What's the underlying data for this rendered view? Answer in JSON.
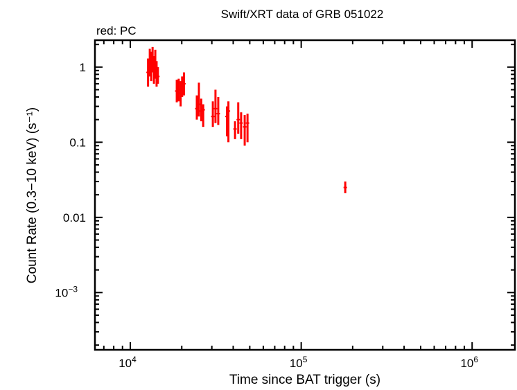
{
  "chart_data": {
    "type": "scatter",
    "title": "Swift/XRT data of GRB 051022",
    "legend_note": "red: PC",
    "xlabel": "Time since BAT trigger (s)",
    "ylabel": "Count Rate (0.3−10 keV) (s⁻¹)",
    "xscale": "log",
    "yscale": "log",
    "xlim": [
      6210,
      1780000
    ],
    "ylim": [
      0.000173,
      2.28
    ],
    "xticks": [
      {
        "value": 10000,
        "base": "10",
        "exp": "4"
      },
      {
        "value": 100000,
        "base": "10",
        "exp": "5"
      },
      {
        "value": 1000000,
        "base": "10",
        "exp": "6"
      }
    ],
    "yticks": [
      {
        "value": 1,
        "label": "1",
        "exp": ""
      },
      {
        "value": 0.1,
        "label": "0.1",
        "exp": ""
      },
      {
        "value": 0.01,
        "label": "0.01",
        "exp": ""
      },
      {
        "value": 0.001,
        "label": "10",
        "exp": "−3"
      }
    ],
    "series_color": "#ff0000",
    "series": [
      {
        "name": "PC",
        "points": [
          {
            "x": 12700,
            "y": 0.85,
            "ylo": 0.55,
            "yhi": 1.3
          },
          {
            "x": 13000,
            "y": 1.2,
            "ylo": 0.75,
            "yhi": 1.75
          },
          {
            "x": 13250,
            "y": 1.0,
            "ylo": 0.65,
            "yhi": 1.6
          },
          {
            "x": 13500,
            "y": 1.3,
            "ylo": 0.85,
            "yhi": 1.85
          },
          {
            "x": 13750,
            "y": 0.9,
            "ylo": 0.6,
            "yhi": 1.4
          },
          {
            "x": 14000,
            "y": 1.1,
            "ylo": 0.7,
            "yhi": 1.7
          },
          {
            "x": 14250,
            "y": 0.8,
            "ylo": 0.55,
            "yhi": 1.2
          },
          {
            "x": 14500,
            "y": 0.75,
            "ylo": 0.6,
            "yhi": 1.0
          },
          {
            "x": 18700,
            "y": 0.48,
            "ylo": 0.34,
            "yhi": 0.68
          },
          {
            "x": 19200,
            "y": 0.5,
            "ylo": 0.35,
            "yhi": 0.7
          },
          {
            "x": 19700,
            "y": 0.45,
            "ylo": 0.3,
            "yhi": 0.65
          },
          {
            "x": 20100,
            "y": 0.55,
            "ylo": 0.4,
            "yhi": 0.75
          },
          {
            "x": 20600,
            "y": 0.6,
            "ylo": 0.42,
            "yhi": 0.85
          },
          {
            "x": 24500,
            "y": 0.28,
            "ylo": 0.2,
            "yhi": 0.42
          },
          {
            "x": 25200,
            "y": 0.32,
            "ylo": 0.22,
            "yhi": 0.62
          },
          {
            "x": 26000,
            "y": 0.26,
            "ylo": 0.19,
            "yhi": 0.38
          },
          {
            "x": 26700,
            "y": 0.27,
            "ylo": 0.16,
            "yhi": 0.32
          },
          {
            "x": 30400,
            "y": 0.22,
            "ylo": 0.16,
            "yhi": 0.35
          },
          {
            "x": 31500,
            "y": 0.28,
            "ylo": 0.18,
            "yhi": 0.5
          },
          {
            "x": 32700,
            "y": 0.24,
            "ylo": 0.17,
            "yhi": 0.4
          },
          {
            "x": 36800,
            "y": 0.22,
            "ylo": 0.12,
            "yhi": 0.3
          },
          {
            "x": 37500,
            "y": 0.26,
            "ylo": 0.1,
            "yhi": 0.35
          },
          {
            "x": 41000,
            "y": 0.15,
            "ylo": 0.11,
            "yhi": 0.19
          },
          {
            "x": 42800,
            "y": 0.2,
            "ylo": 0.13,
            "yhi": 0.34
          },
          {
            "x": 44500,
            "y": 0.18,
            "ylo": 0.11,
            "yhi": 0.25
          },
          {
            "x": 46700,
            "y": 0.16,
            "ylo": 0.09,
            "yhi": 0.23
          },
          {
            "x": 48500,
            "y": 0.18,
            "ylo": 0.1,
            "yhi": 0.24
          },
          {
            "x": 181000,
            "y": 0.025,
            "ylo": 0.021,
            "yhi": 0.03
          }
        ]
      }
    ]
  }
}
